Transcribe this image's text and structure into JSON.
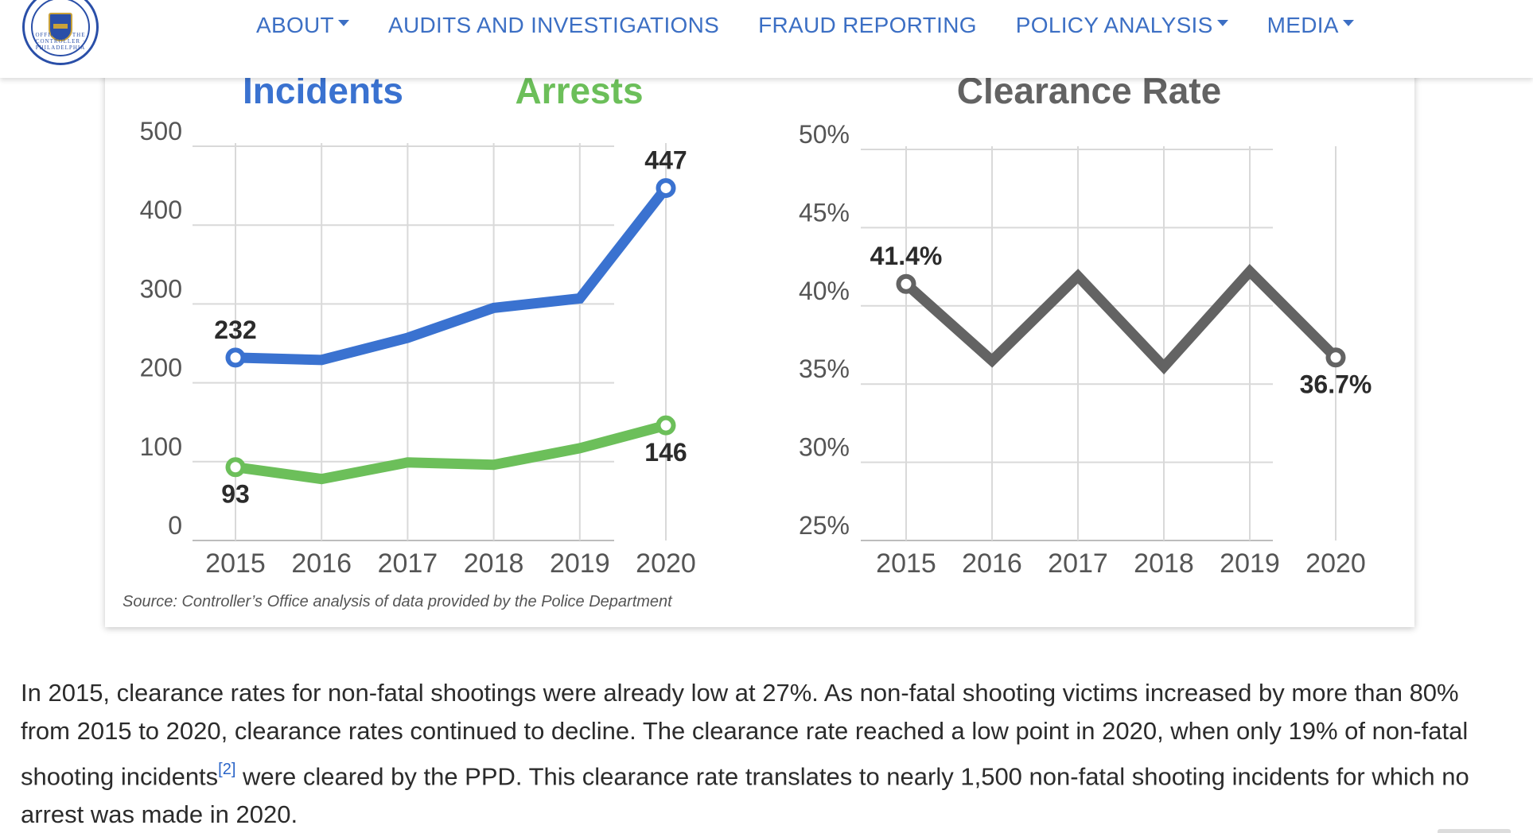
{
  "header": {
    "logo": {
      "icon": "city-controller-seal-icon",
      "text": "OFFICE OF THE CONTROLLER · PHILADELPHIA"
    },
    "nav": [
      {
        "label": "ABOUT",
        "dropdown": true
      },
      {
        "label": "AUDITS AND INVESTIGATIONS",
        "dropdown": false
      },
      {
        "label": "FRAUD REPORTING",
        "dropdown": false
      },
      {
        "label": "POLICY ANALYSIS",
        "dropdown": true
      },
      {
        "label": "MEDIA",
        "dropdown": true
      }
    ]
  },
  "colors": {
    "nav": "#3c6fc4",
    "incidents": "#3a72d0",
    "arrests": "#6cbf5a",
    "clearance": "#636363",
    "grid": "#d9d9d9",
    "axis_text": "#555555"
  },
  "chart_data": [
    {
      "type": "line",
      "title": "",
      "legend": [
        "Incidents",
        "Arrests"
      ],
      "x": [
        2015,
        2016,
        2017,
        2018,
        2019,
        2020
      ],
      "ylim": [
        0,
        500
      ],
      "yticks": [
        "0",
        "100",
        "200",
        "300",
        "400",
        "500"
      ],
      "series": [
        {
          "name": "Incidents",
          "values": [
            232,
            229,
            257,
            295,
            307,
            447
          ]
        },
        {
          "name": "Arrests",
          "values": [
            93,
            78,
            99,
            96,
            117,
            146
          ]
        }
      ],
      "labels": [
        {
          "series": "Incidents",
          "point": 0,
          "text": "232",
          "position": "above"
        },
        {
          "series": "Incidents",
          "point": 5,
          "text": "447",
          "position": "above"
        },
        {
          "series": "Arrests",
          "point": 0,
          "text": "93",
          "position": "below"
        },
        {
          "series": "Arrests",
          "point": 5,
          "text": "146",
          "position": "below"
        }
      ],
      "source": "Source: Controller’s Office analysis of data provided by the Police Department",
      "grid": true
    },
    {
      "type": "line",
      "title": "Clearance Rate",
      "x": [
        2015,
        2016,
        2017,
        2018,
        2019,
        2020
      ],
      "ylim": [
        25,
        50
      ],
      "yticks": [
        "25%",
        "30%",
        "35%",
        "40%",
        "45%",
        "50%"
      ],
      "series": [
        {
          "name": "Clearance Rate",
          "values": [
            41.4,
            36.5,
            41.9,
            36.1,
            42.2,
            36.7
          ]
        }
      ],
      "labels": [
        {
          "series": "Clearance Rate",
          "point": 0,
          "text": "41.4%",
          "position": "above"
        },
        {
          "series": "Clearance Rate",
          "point": 5,
          "text": "36.7%",
          "position": "below"
        }
      ],
      "grid": true
    }
  ],
  "article": {
    "text_before": "In 2015, clearance rates for non-fatal shootings were already low at 27%. As non-fatal shooting victims increased by more than 80% from 2015 to 2020, clearance rates continued to decline. The clearance rate reached a low point in 2020, when only 19% of non-fatal shooting incidents",
    "footnote": "[2]",
    "text_after": " were cleared by the PPD. This clearance rate translates to nearly 1,500 non-fatal shooting incidents for which no arrest was made in 2020."
  }
}
